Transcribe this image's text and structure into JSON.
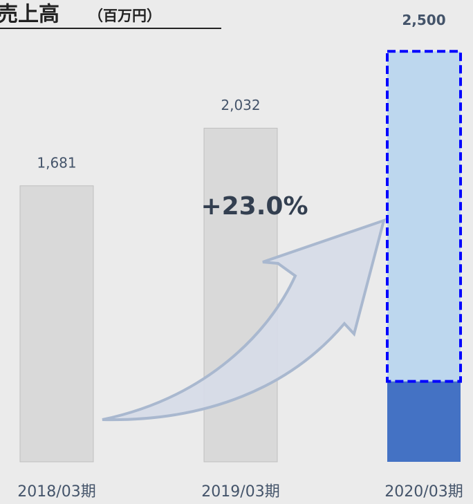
{
  "chart_data": {
    "type": "bar",
    "title": "売上高",
    "subtitle": "（百万円）",
    "categories": [
      "2018/03期",
      "2019/03期",
      "2020/03期"
    ],
    "series": [
      {
        "color": "#d9d9d9",
        "values": [
          1681,
          2032,
          null
        ]
      },
      {
        "color": "#4472c4",
        "values": [
          null,
          null,
          490
        ]
      },
      {
        "color": "#bdd7ee",
        "values": [
          null,
          null,
          2010
        ]
      }
    ],
    "totals": [
      1681,
      2032,
      2500
    ],
    "value_labels": [
      "1,681",
      "2,032",
      "2,500"
    ],
    "annotation": "+23.0%",
    "ylim": [
      0,
      2800
    ]
  }
}
